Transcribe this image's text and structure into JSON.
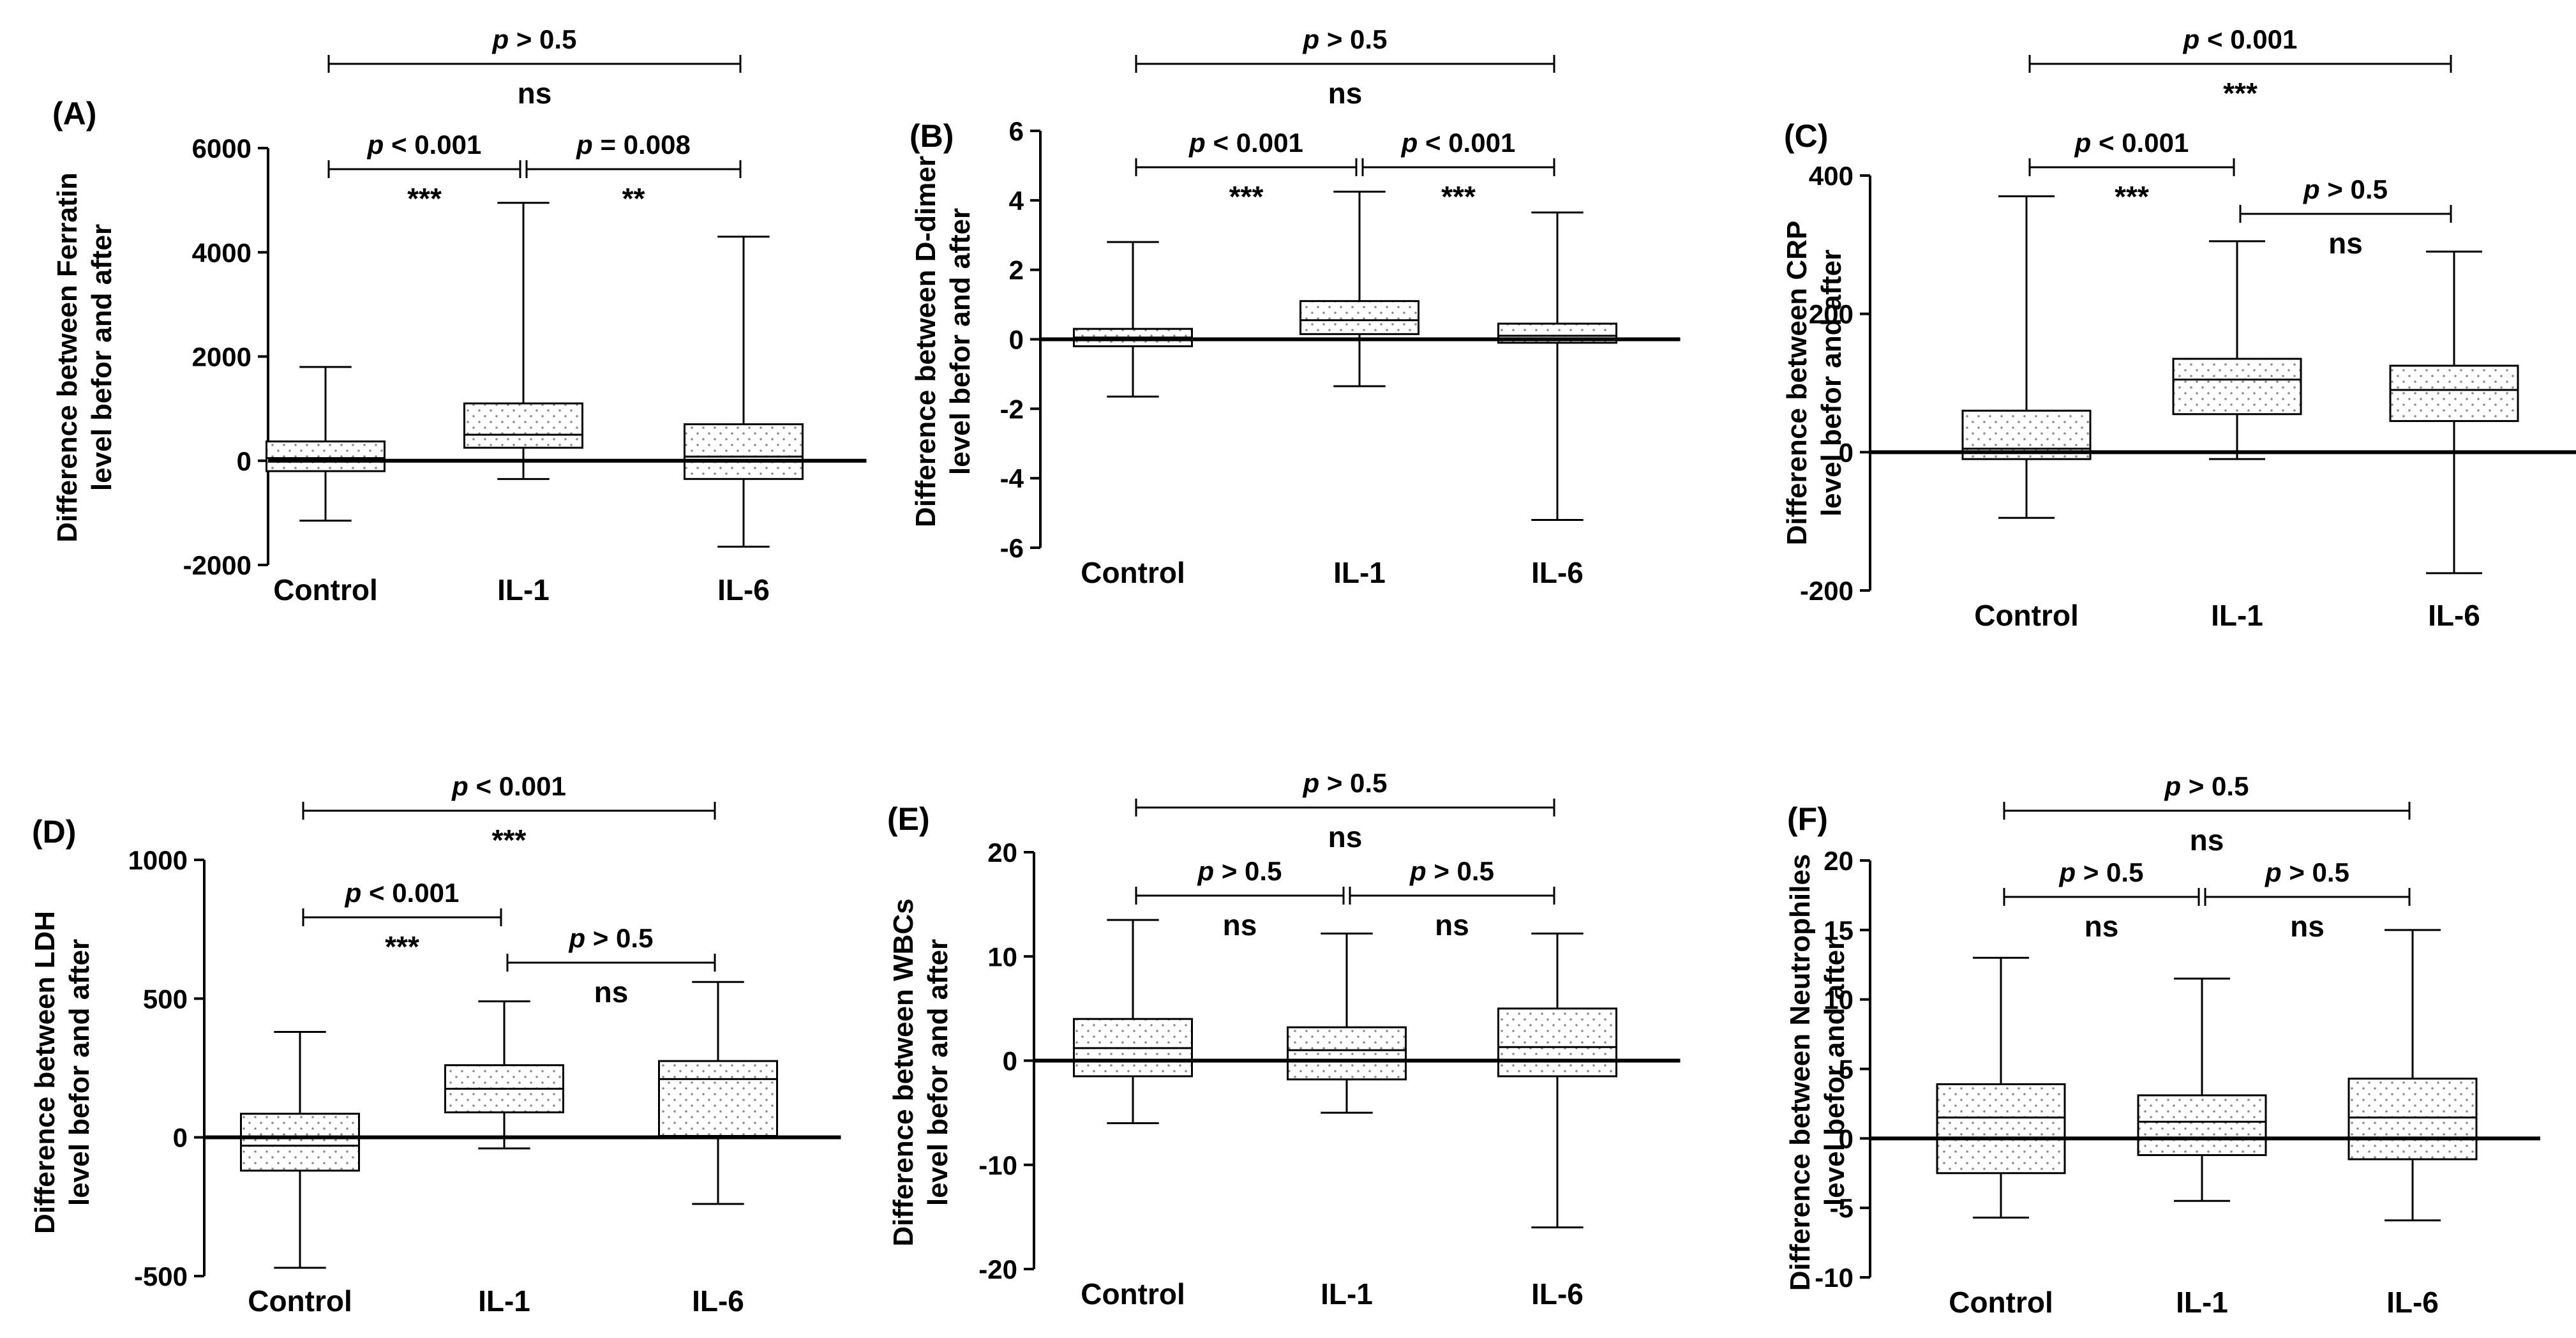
{
  "chart_data": [
    {
      "type": "box",
      "panel_label": "(A)",
      "ylabel_lines": [
        "Difference between Ferratin",
        "level befor and after"
      ],
      "categories": [
        "Control",
        "IL-1",
        "IL-6"
      ],
      "ylim": [
        -2000,
        6000
      ],
      "yticks": [
        -2000,
        0,
        2000,
        4000,
        6000
      ],
      "ytick_labels": [
        "-2000",
        "0",
        "2000",
        "4000",
        "6000"
      ],
      "boxes": [
        {
          "min": -1150,
          "q1": -200,
          "median": 50,
          "q3": 370,
          "max": 1800
        },
        {
          "min": -350,
          "q1": 250,
          "median": 500,
          "q3": 1100,
          "max": 4950
        },
        {
          "min": -1650,
          "q1": -350,
          "median": 80,
          "q3": 700,
          "max": 4300
        }
      ],
      "comparisons": [
        {
          "from": 0,
          "to": 1,
          "tier": 1,
          "p_label": "< 0.001",
          "sig": "***"
        },
        {
          "from": 1,
          "to": 2,
          "tier": 1,
          "p_label": "= 0.008",
          "sig": "**"
        },
        {
          "from": 0,
          "to": 2,
          "tier": 2,
          "p_label": "> 0.5",
          "sig": "ns"
        }
      ]
    },
    {
      "type": "box",
      "panel_label": "(B)",
      "ylabel_lines": [
        "Difference between D-dimer",
        "level befor and after"
      ],
      "categories": [
        "Control",
        "IL-1",
        "IL-6"
      ],
      "ylim": [
        -6,
        6
      ],
      "yticks": [
        -6,
        -4,
        -2,
        0,
        2,
        4,
        6
      ],
      "ytick_labels": [
        "-6",
        "-4",
        "-2",
        "0",
        "2",
        "4",
        "6"
      ],
      "boxes": [
        {
          "min": -1.65,
          "q1": -0.2,
          "median": 0.05,
          "q3": 0.3,
          "max": 2.8
        },
        {
          "min": -1.35,
          "q1": 0.15,
          "median": 0.55,
          "q3": 1.1,
          "max": 4.25
        },
        {
          "min": -5.2,
          "q1": -0.1,
          "median": 0.1,
          "q3": 0.45,
          "max": 3.65
        }
      ],
      "comparisons": [
        {
          "from": 0,
          "to": 1,
          "tier": 1,
          "p_label": "< 0.001",
          "sig": "***"
        },
        {
          "from": 1,
          "to": 2,
          "tier": 1,
          "p_label": "< 0.001",
          "sig": "***"
        },
        {
          "from": 0,
          "to": 2,
          "tier": 2,
          "p_label": "> 0.5",
          "sig": "ns"
        }
      ]
    },
    {
      "type": "box",
      "panel_label": "(C)",
      "ylabel_lines": [
        "Difference between CRP",
        "level befor and after"
      ],
      "categories": [
        "Control",
        "IL-1",
        "IL-6"
      ],
      "ylim": [
        -200,
        400
      ],
      "yticks": [
        -200,
        0,
        200,
        400
      ],
      "ytick_labels": [
        "-200",
        "0",
        "200",
        "400"
      ],
      "boxes": [
        {
          "min": -95,
          "q1": -10,
          "median": 5,
          "q3": 60,
          "max": 370
        },
        {
          "min": -10,
          "q1": 55,
          "median": 105,
          "q3": 135,
          "max": 305
        },
        {
          "min": -175,
          "q1": 45,
          "median": 90,
          "q3": 125,
          "max": 290
        }
      ],
      "comparisons": [
        {
          "from": 0,
          "to": 1,
          "tier": 1,
          "p_label": "< 0.001",
          "sig": "***"
        },
        {
          "from": 1,
          "to": 2,
          "tier": 0,
          "p_label": "> 0.5",
          "sig": "ns"
        },
        {
          "from": 0,
          "to": 2,
          "tier": 2,
          "p_label": "< 0.001",
          "sig": "***"
        }
      ]
    },
    {
      "type": "box",
      "panel_label": "(D)",
      "ylabel_lines": [
        "Difference between LDH",
        "level befor and after"
      ],
      "categories": [
        "Control",
        "IL-1",
        "IL-6"
      ],
      "ylim": [
        -500,
        1000
      ],
      "yticks": [
        -500,
        0,
        500,
        1000
      ],
      "ytick_labels": [
        "-500",
        "0",
        "500",
        "1000"
      ],
      "boxes": [
        {
          "min": -470,
          "q1": -120,
          "median": -30,
          "q3": 85,
          "max": 380
        },
        {
          "min": -40,
          "q1": 90,
          "median": 175,
          "q3": 260,
          "max": 490
        },
        {
          "min": -240,
          "q1": 5,
          "median": 210,
          "q3": 275,
          "max": 560
        }
      ],
      "comparisons": [
        {
          "from": 0,
          "to": 1,
          "tier": 1,
          "p_label": "< 0.001",
          "sig": "***"
        },
        {
          "from": 1,
          "to": 2,
          "tier": 0,
          "p_label": "> 0.5",
          "sig": "ns"
        },
        {
          "from": 0,
          "to": 2,
          "tier": 2,
          "p_label": "< 0.001",
          "sig": "***"
        }
      ]
    },
    {
      "type": "box",
      "panel_label": "(E)",
      "ylabel_lines": [
        "Difference between WBCs",
        "level befor and after"
      ],
      "categories": [
        "Control",
        "IL-1",
        "IL-6"
      ],
      "ylim": [
        -20,
        20
      ],
      "yticks": [
        -20,
        -10,
        0,
        10,
        20
      ],
      "ytick_labels": [
        "-20",
        "-10",
        "0",
        "10",
        "20"
      ],
      "boxes": [
        {
          "min": -6,
          "q1": -1.5,
          "median": 1.2,
          "q3": 4,
          "max": 13.5
        },
        {
          "min": -5,
          "q1": -1.8,
          "median": 1.0,
          "q3": 3.2,
          "max": 12.2
        },
        {
          "min": -16,
          "q1": -1.5,
          "median": 1.3,
          "q3": 5,
          "max": 12.2
        }
      ],
      "comparisons": [
        {
          "from": 0,
          "to": 1,
          "tier": 1,
          "p_label": "> 0.5",
          "sig": "ns"
        },
        {
          "from": 1,
          "to": 2,
          "tier": 1,
          "p_label": "> 0.5",
          "sig": "ns"
        },
        {
          "from": 0,
          "to": 2,
          "tier": 2,
          "p_label": "> 0.5",
          "sig": "ns"
        }
      ]
    },
    {
      "type": "box",
      "panel_label": "(F)",
      "ylabel_lines": [
        "Difference between Neutrophiles",
        "level befor and after"
      ],
      "categories": [
        "Control",
        "IL-1",
        "IL-6"
      ],
      "ylim": [
        -10,
        20
      ],
      "yticks": [
        -10,
        -5,
        0,
        5,
        10,
        15,
        20
      ],
      "ytick_labels": [
        "-10",
        "-5",
        "0",
        "5",
        "10",
        "15",
        "20"
      ],
      "boxes": [
        {
          "min": -5.7,
          "q1": -2.5,
          "median": 1.5,
          "q3": 3.9,
          "max": 13
        },
        {
          "min": -4.5,
          "q1": -1.2,
          "median": 1.2,
          "q3": 3.1,
          "max": 11.5
        },
        {
          "min": -5.9,
          "q1": -1.5,
          "median": 1.5,
          "q3": 4.3,
          "max": 15
        }
      ],
      "comparisons": [
        {
          "from": 0,
          "to": 1,
          "tier": 1,
          "p_label": "> 0.5",
          "sig": "ns"
        },
        {
          "from": 1,
          "to": 2,
          "tier": 1,
          "p_label": "> 0.5",
          "sig": "ns"
        },
        {
          "from": 0,
          "to": 2,
          "tier": 2,
          "p_label": "> 0.5",
          "sig": "ns"
        }
      ]
    }
  ]
}
